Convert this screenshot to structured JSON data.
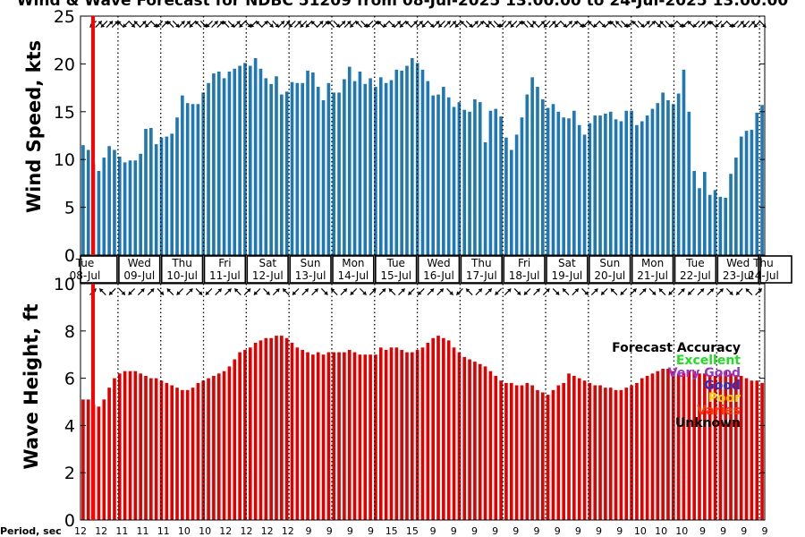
{
  "title": "Wind & Wave Forecast for NDBC 51209 from 08-Jul-2025 13:00:00 to 24-Jul-2025 13:00:00",
  "period_label": "Period, sec",
  "legend": {
    "title": "Forecast Accuracy",
    "items": [
      {
        "label": "Excellent",
        "color": "#22dd22"
      },
      {
        "label": "Very Good",
        "color": "#9933cc"
      },
      {
        "label": "Good",
        "color": "#2233cc"
      },
      {
        "label": "Poor",
        "color": "#ffcc00"
      },
      {
        "label": "Varies",
        "color": "#ff3300"
      },
      {
        "label": "Unknown",
        "color": "#000000"
      }
    ]
  },
  "colors": {
    "wind_bar": "#1f77b4",
    "wave_bar": "#e00000",
    "now_line": "#ff0000"
  },
  "chart_data": [
    {
      "type": "bar",
      "ylabel": "Wind Speed, kts",
      "ylim": [
        0,
        25
      ],
      "yticks": [
        0,
        5,
        10,
        15,
        20,
        25
      ],
      "day_labels": [
        {
          "day": "Tue",
          "date": "08-Jul"
        },
        {
          "day": "Wed",
          "date": "09-Jul"
        },
        {
          "day": "Thu",
          "date": "10-Jul"
        },
        {
          "day": "Fri",
          "date": "11-Jul"
        },
        {
          "day": "Sat",
          "date": "12-Jul"
        },
        {
          "day": "Sun",
          "date": "13-Jul"
        },
        {
          "day": "Mon",
          "date": "14-Jul"
        },
        {
          "day": "Tue",
          "date": "15-Jul"
        },
        {
          "day": "Wed",
          "date": "16-Jul"
        },
        {
          "day": "Thu",
          "date": "17-Jul"
        },
        {
          "day": "Fri",
          "date": "18-Jul"
        },
        {
          "day": "Sat",
          "date": "19-Jul"
        },
        {
          "day": "Sun",
          "date": "20-Jul"
        },
        {
          "day": "Mon",
          "date": "21-Jul"
        },
        {
          "day": "Tue",
          "date": "22-Jul"
        },
        {
          "day": "Wed",
          "date": "23-Jul"
        },
        {
          "day": "Thu",
          "date": "24-Jul"
        }
      ],
      "values": [
        11.5,
        11.0,
        9.5,
        8.8,
        10.2,
        11.4,
        11.0,
        10.3,
        9.7,
        9.9,
        9.9,
        10.6,
        13.2,
        13.3,
        11.6,
        12.3,
        12.4,
        12.7,
        14.4,
        16.7,
        15.9,
        15.8,
        15.8,
        17.0,
        18.0,
        19.0,
        19.2,
        18.5,
        19.2,
        19.5,
        19.8,
        20.1,
        19.8,
        20.6,
        19.5,
        18.5,
        17.9,
        18.7,
        16.8,
        17.1,
        18.1,
        18.0,
        18.0,
        19.3,
        19.1,
        17.6,
        16.2,
        18.0,
        17.0,
        17.0,
        18.4,
        19.7,
        18.2,
        19.2,
        17.9,
        18.5,
        17.6,
        18.6,
        18.0,
        18.3,
        19.4,
        19.3,
        19.8,
        20.6,
        20.1,
        19.4,
        18.2,
        16.7,
        16.8,
        17.6,
        16.5,
        15.5,
        16.0,
        15.2,
        15.0,
        16.3,
        16.0,
        11.8,
        15.1,
        15.3,
        14.5,
        12.3,
        11.0,
        12.6,
        14.4,
        16.8,
        18.6,
        17.6,
        16.3,
        15.4,
        15.8,
        15.0,
        14.4,
        14.3,
        15.1,
        13.6,
        12.6,
        13.8,
        14.6,
        14.6,
        14.8,
        15.0,
        14.2,
        14.0,
        15.1,
        15.1,
        13.6,
        14.0,
        14.6,
        15.3,
        15.9,
        17.0,
        16.2,
        15.8,
        16.9,
        19.4,
        15.0,
        8.8,
        7.0,
        8.7,
        6.3,
        6.8,
        6.1,
        6.0,
        8.5,
        10.2,
        12.4,
        13.0,
        13.1,
        14.9,
        15.7
      ],
      "arrow_angles_deg": [
        135,
        315,
        135,
        315,
        315,
        225,
        135,
        45,
        225,
        315,
        135,
        45,
        135,
        315,
        225,
        45,
        315,
        315,
        135,
        225,
        45,
        135,
        315,
        315,
        225,
        45,
        315,
        135,
        45,
        135,
        225,
        315,
        45,
        45,
        315,
        315,
        135,
        315,
        135,
        135,
        225,
        315,
        315,
        225,
        45,
        315,
        315,
        135,
        225,
        45,
        135,
        315,
        225,
        135,
        45,
        315,
        135,
        225,
        315,
        315,
        135,
        45,
        315,
        135,
        315,
        315,
        135,
        225,
        45,
        315,
        315,
        45,
        225,
        45,
        135,
        315,
        135,
        315,
        225,
        45,
        225,
        315,
        135,
        315,
        135,
        45,
        315,
        315,
        45,
        135,
        225,
        135,
        45,
        315,
        225,
        225,
        45,
        135,
        225,
        45,
        315,
        315,
        45,
        225,
        45,
        135,
        45,
        135,
        225,
        135,
        315,
        315,
        225,
        135,
        135,
        45,
        135,
        315,
        135,
        315,
        135,
        45
      ]
    },
    {
      "type": "bar",
      "ylabel": "Wave Height, ft",
      "ylim": [
        0,
        10
      ],
      "yticks": [
        0,
        2,
        4,
        6,
        8,
        10
      ],
      "values": [
        5.1,
        5.1,
        4.9,
        4.8,
        5.1,
        5.6,
        6.0,
        6.2,
        6.3,
        6.3,
        6.3,
        6.2,
        6.1,
        6.0,
        6.0,
        5.9,
        5.8,
        5.7,
        5.6,
        5.5,
        5.5,
        5.6,
        5.8,
        5.9,
        6.0,
        6.1,
        6.2,
        6.3,
        6.5,
        6.8,
        7.1,
        7.2,
        7.3,
        7.5,
        7.6,
        7.7,
        7.7,
        7.8,
        7.8,
        7.7,
        7.5,
        7.3,
        7.2,
        7.1,
        7.0,
        7.1,
        7.0,
        7.1,
        7.1,
        7.1,
        7.1,
        7.2,
        7.1,
        7.0,
        7.0,
        7.0,
        7.0,
        7.3,
        7.2,
        7.3,
        7.3,
        7.2,
        7.1,
        7.1,
        7.2,
        7.3,
        7.5,
        7.7,
        7.8,
        7.7,
        7.6,
        7.3,
        7.1,
        6.9,
        6.8,
        6.7,
        6.6,
        6.5,
        6.3,
        6.1,
        5.9,
        5.8,
        5.8,
        5.7,
        5.7,
        5.8,
        5.7,
        5.5,
        5.4,
        5.3,
        5.5,
        5.7,
        5.8,
        6.2,
        6.1,
        6.0,
        5.9,
        5.8,
        5.7,
        5.7,
        5.6,
        5.6,
        5.5,
        5.5,
        5.6,
        5.7,
        5.8,
        6.0,
        6.1,
        6.2,
        6.3,
        6.4,
        6.4,
        6.3,
        6.2,
        6.2,
        6.3,
        6.3,
        6.2,
        6.2,
        6.1,
        6.1,
        6.2,
        6.3,
        6.2,
        6.1,
        6.1,
        6.0,
        5.9,
        5.9,
        5.8
      ],
      "arrow_angles_deg": [
        315,
        225,
        135,
        45,
        135,
        315,
        315,
        45,
        225,
        135,
        315,
        45,
        135,
        315,
        315,
        225,
        315,
        135,
        45,
        315,
        225,
        135,
        315,
        315,
        45,
        225,
        315,
        135,
        45,
        315,
        315,
        225,
        315,
        135,
        135,
        315,
        315,
        45,
        135,
        225,
        315,
        315,
        135,
        315,
        45,
        135,
        315,
        315,
        45,
        225,
        315,
        45,
        315,
        135,
        225,
        135,
        315,
        315,
        45,
        225,
        135,
        315,
        135,
        315,
        315,
        315,
        45,
        135,
        225,
        315
      ],
      "period_ticks": [
        12,
        12,
        11,
        11,
        11,
        10,
        10,
        12,
        12,
        12,
        12,
        9,
        9,
        9,
        9,
        15,
        15,
        9,
        9,
        9,
        9,
        9,
        9,
        9,
        9,
        9,
        9,
        10,
        10,
        10,
        9,
        9,
        9,
        9
      ]
    }
  ]
}
